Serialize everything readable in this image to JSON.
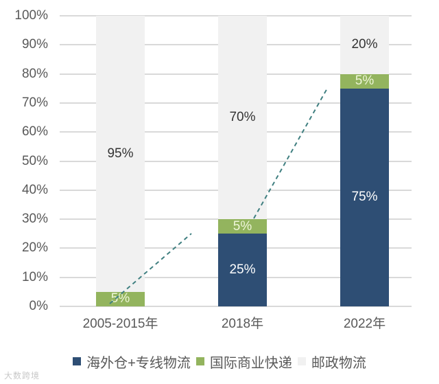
{
  "chart_data": {
    "type": "bar",
    "stacked": true,
    "title": "",
    "xlabel": "",
    "ylabel": "",
    "ylim": [
      0,
      100
    ],
    "y_ticks": [
      "0%",
      "10%",
      "20%",
      "30%",
      "40%",
      "50%",
      "60%",
      "70%",
      "80%",
      "90%",
      "100%"
    ],
    "grid": true,
    "legend_position": "bottom",
    "categories": [
      "2005-2015年",
      "2018年",
      "2022年"
    ],
    "series": [
      {
        "name": "海外仓+专线物流",
        "color": "#2e4e74",
        "label_color": "#ffffff",
        "values": [
          0,
          25,
          75
        ],
        "labels": [
          "",
          "25%",
          "75%"
        ]
      },
      {
        "name": "国际商业快递",
        "color": "#93b45e",
        "label_color": "#eef6d8",
        "values": [
          5,
          5,
          5
        ],
        "labels": [
          "5%",
          "5%",
          "5%"
        ]
      },
      {
        "name": "邮政物流",
        "color": "#f1f1f1",
        "label_color": "#333333",
        "values": [
          95,
          70,
          20
        ],
        "labels": [
          "95%",
          "70%",
          "20%"
        ]
      }
    ],
    "annotations": [
      {
        "type": "dashed-trend-line",
        "from": "2005-2015年 (~2%)",
        "to": "between 2005-2015年 and 2018年 (~26%)",
        "color": "#3f7f80"
      },
      {
        "type": "dashed-trend-line",
        "from": "2018年 (~26%)",
        "to": "between 2018年 and 2022年 (~76%)",
        "color": "#3f7f80"
      }
    ]
  },
  "watermark": "大数跨境"
}
